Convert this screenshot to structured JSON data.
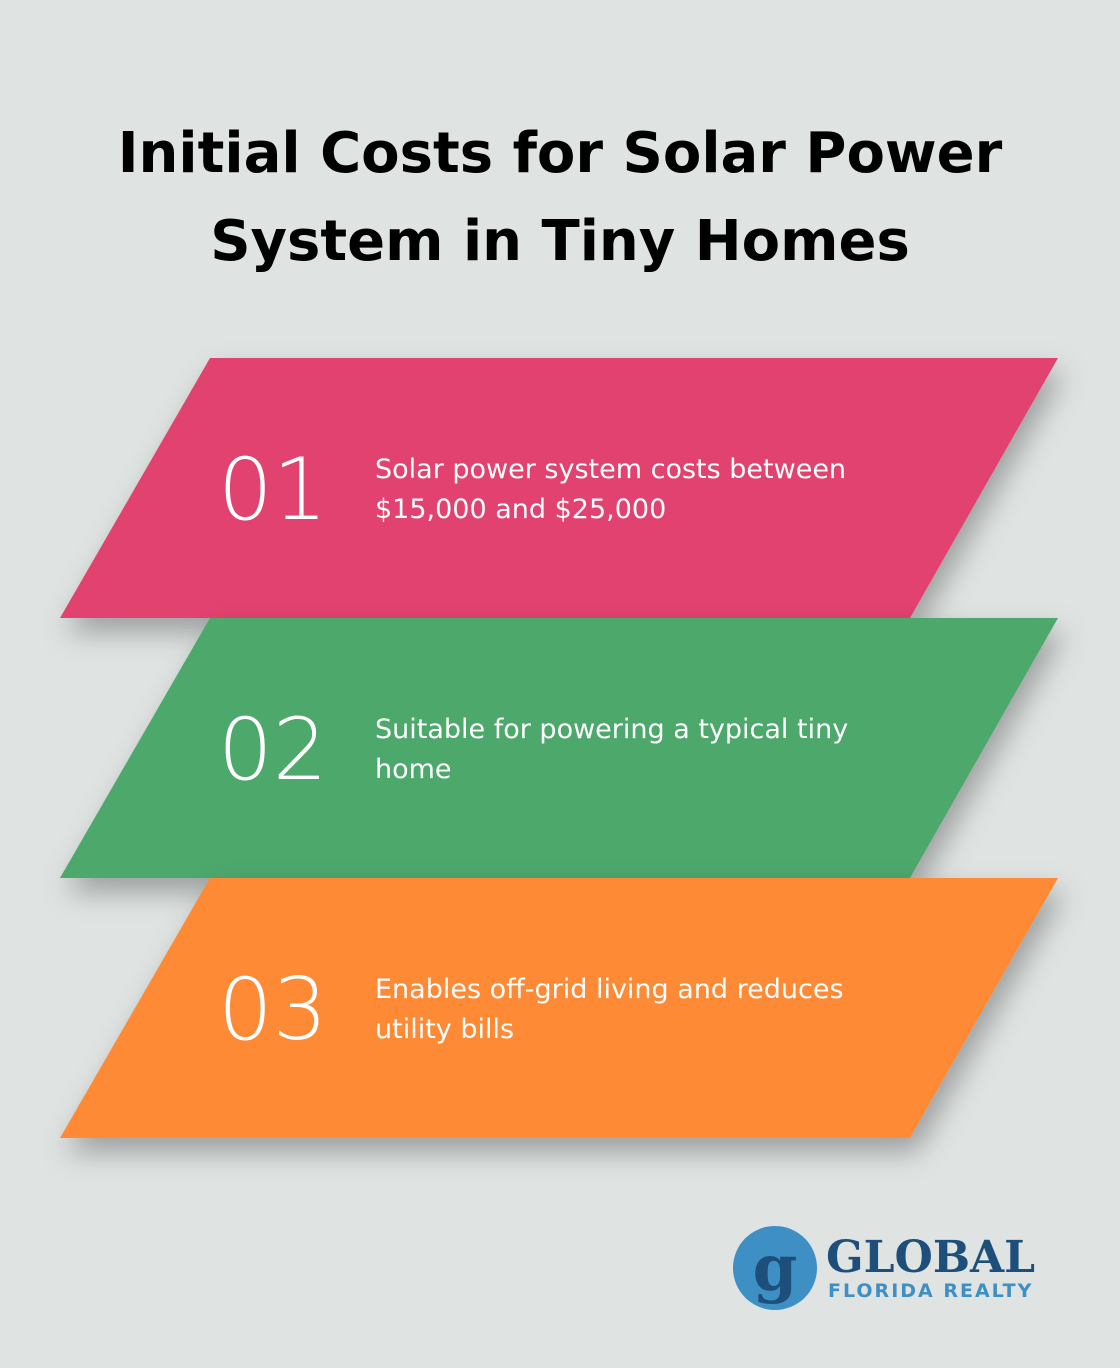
{
  "title": "Initial Costs for Solar Power System in Tiny Homes",
  "items": [
    {
      "number": "01",
      "text": "Solar power system costs between $15,000 and $25,000"
    },
    {
      "number": "02",
      "text": "Suitable for powering a typical tiny home"
    },
    {
      "number": "03",
      "text": "Enables off-grid living and reduces utility bills"
    }
  ],
  "logo": {
    "name": "GLOBAL",
    "subtitle": "FLORIDA REALTY"
  }
}
